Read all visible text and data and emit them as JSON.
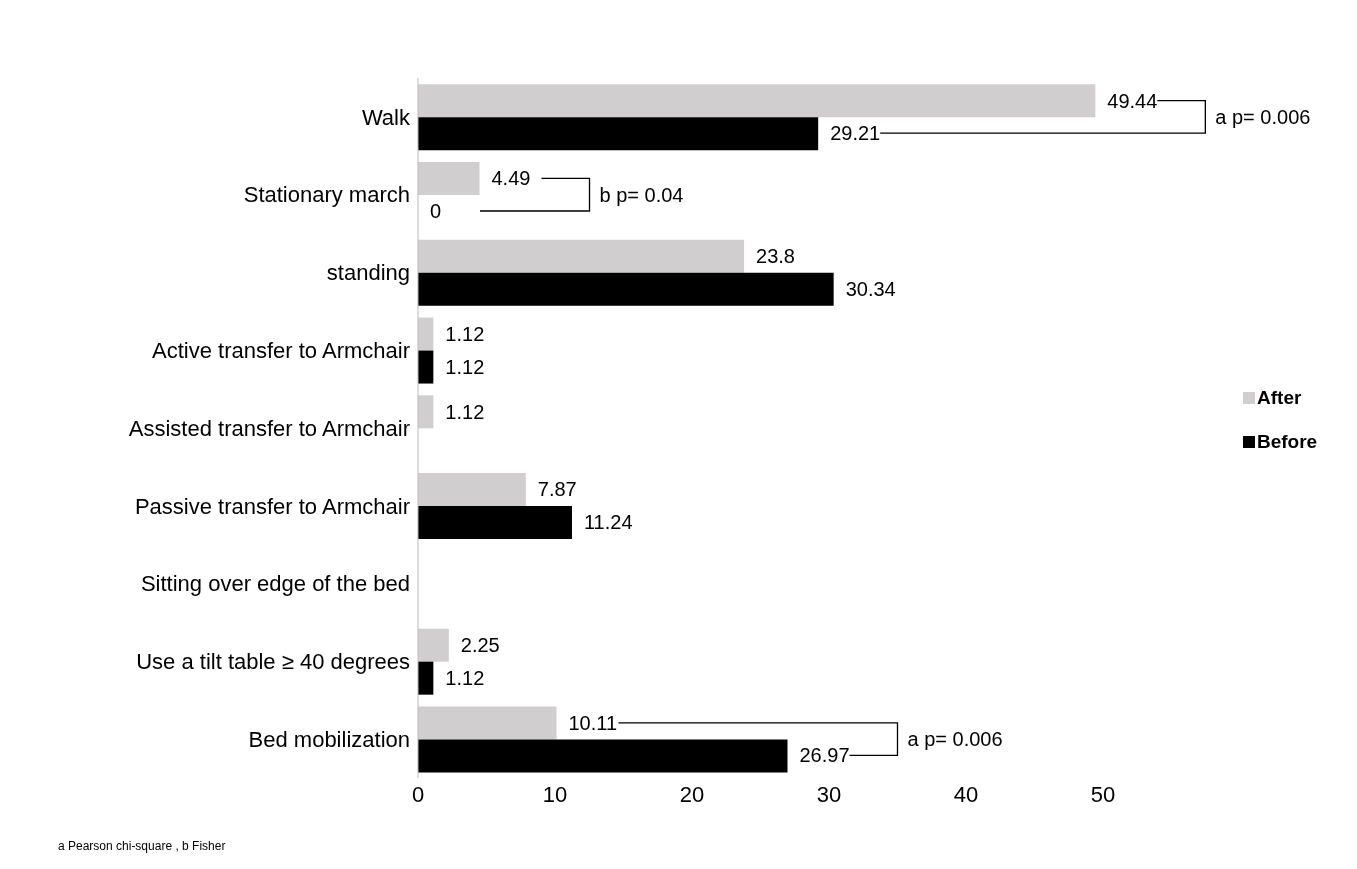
{
  "chart_data": {
    "type": "bar",
    "orientation": "horizontal",
    "categories": [
      "Walk",
      "Stationary march",
      "standing",
      "Active transfer to Armchair",
      "Assisted transfer to Armchair",
      "Passive transfer to Armchair",
      "Sitting over edge of the bed",
      "Use a tilt table ≥ 40 degrees",
      "Bed mobilization"
    ],
    "series": [
      {
        "name": "After",
        "color": "#d0cece",
        "values": [
          49.44,
          4.49,
          23.8,
          1.12,
          1.12,
          7.87,
          null,
          2.25,
          10.11
        ]
      },
      {
        "name": "Before",
        "color": "#000000",
        "values": [
          29.21,
          0,
          30.34,
          1.12,
          null,
          11.24,
          null,
          1.12,
          26.97
        ]
      }
    ],
    "xlim": [
      0,
      50
    ],
    "xticks": [
      0,
      10,
      20,
      30,
      40,
      50
    ],
    "grid": false,
    "legend": "right",
    "data_labels": true,
    "annotations": [
      "a p= 0.006",
      "b p= 0.04",
      "a p= 0.006",
      "a Pearson chi-square , b Fisher"
    ]
  }
}
